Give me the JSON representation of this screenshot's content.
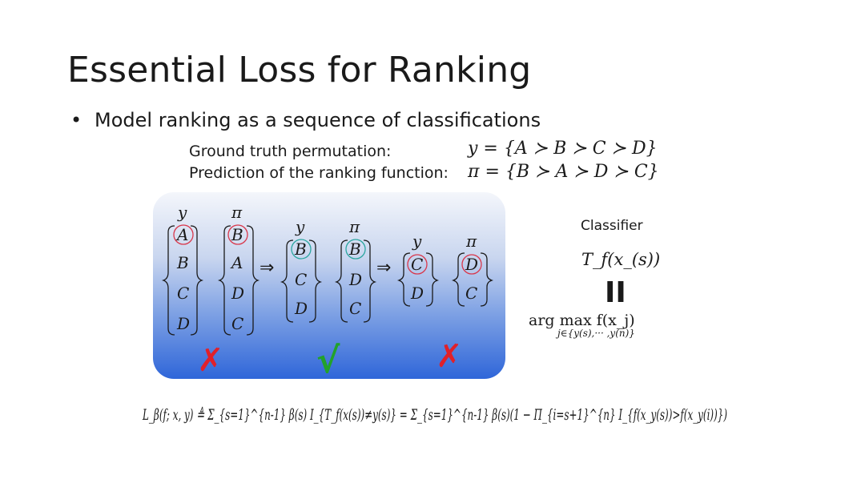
{
  "slide": {
    "title": "Essential Loss for Ranking",
    "bullet": "Model ranking as a sequence of classifications",
    "ground_truth_label": "Ground truth permutation:",
    "ground_truth_eq": "y = {A ≻ B ≻ C ≻ D}",
    "prediction_label": "Prediction of the ranking function:",
    "prediction_eq": "π = {B ≻ A ≻ D ≻ C}",
    "classifier_label": "Classifier",
    "classifier_expr": "T_f(x_(s))",
    "equals_symbol": "II",
    "argmax_expr": "arg max f(x_j)",
    "argmax_sub": "j∈{y(s),··· ,y(n)}",
    "loss_formula": "L_β(f; x, y) ≜ Σ_{s=1}^{n-1} β(s) I_{T_f(x(s))≠y(s)} = Σ_{s=1}^{n-1} β(s)(1 − Π_{i=s+1}^{n} I_{f(x_y(s))>f(x_y(i))})"
  },
  "columns": {
    "steps": [
      {
        "y_header": "y",
        "pi_header": "π",
        "y_items": [
          "A",
          "B",
          "C",
          "D"
        ],
        "pi_items": [
          "B",
          "A",
          "D",
          "C"
        ],
        "mark": "✗"
      },
      {
        "y_header": "y",
        "pi_header": "π",
        "y_items": [
          "B",
          "C",
          "D"
        ],
        "pi_items": [
          "B",
          "D",
          "C"
        ],
        "mark": "√"
      },
      {
        "y_header": "y",
        "pi_header": "π",
        "y_items": [
          "C",
          "D"
        ],
        "pi_items": [
          "D",
          "C"
        ],
        "mark": "✗"
      }
    ],
    "arrow": "⇒"
  },
  "colors": {
    "wrong": "#e0202a",
    "right": "#22a22a",
    "circle_red": "#d9364a",
    "circle_teal": "#2aa6a0"
  }
}
